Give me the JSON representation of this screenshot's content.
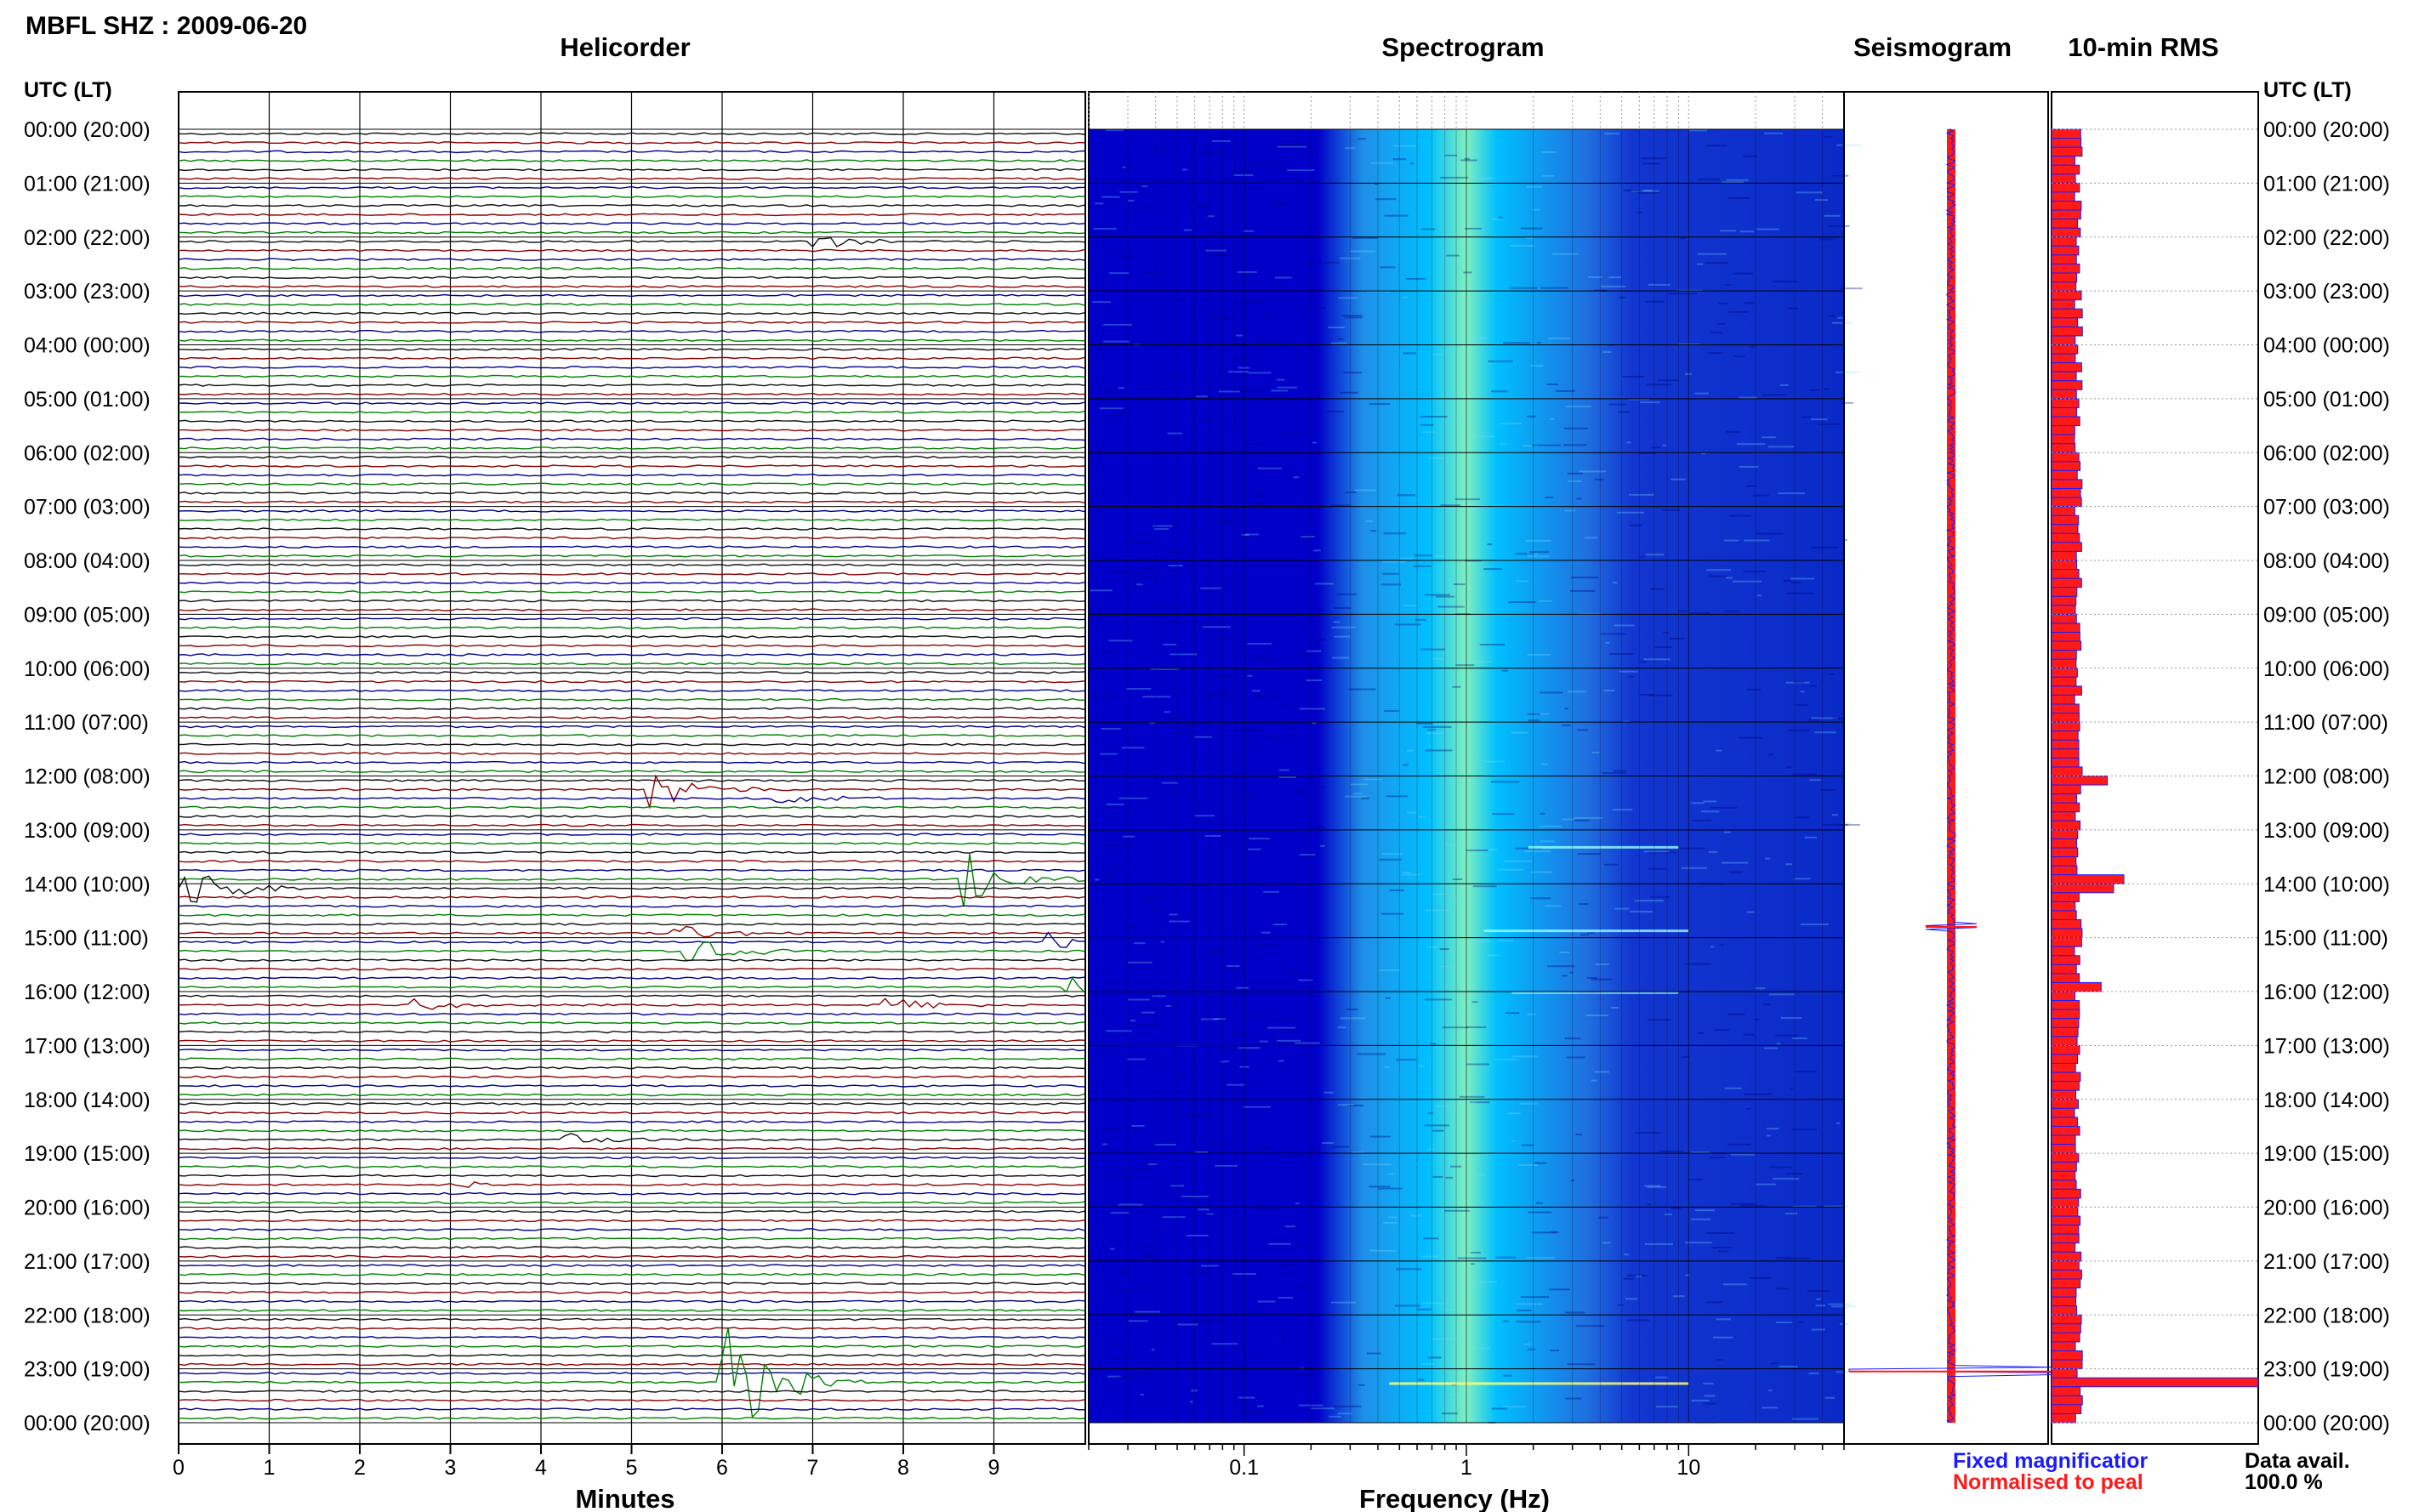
{
  "title": "MBFL SHZ : 2009-06-20",
  "panels": {
    "helicorder": "Helicorder",
    "spectrogram": "Spectrogram",
    "seismogram": "Seismogram",
    "rms": "10-min RMS"
  },
  "time_axis_label": "UTC (LT)",
  "legend": {
    "fixed": "Fixed magnificatior",
    "normalised": "Normalised to peal",
    "fixed_color": "#1a1aff",
    "normalised_color": "#ff1a1a"
  },
  "data_avail": {
    "label": "Data avail.",
    "value": "100.0 %"
  },
  "colors": {
    "trace_black": "#111111",
    "trace_red": "#8b0000",
    "trace_blue": "#00008b",
    "trace_green": "#008000",
    "spec_low": "#0000c8",
    "spec_mid": "#00c0ff",
    "spec_high": "#ffff00",
    "rms_fill": "#ff1a1a",
    "rms_line": "#1a1aff"
  },
  "chart_data": [
    {
      "type": "line",
      "name": "helicorder",
      "xlabel": "Minutes",
      "xlim": [
        0,
        10
      ],
      "x_ticks": [
        "0",
        "1",
        "2",
        "3",
        "4",
        "5",
        "6",
        "7",
        "8",
        "9"
      ],
      "y_ticks": [
        "00:00 (20:00)",
        "01:00 (21:00)",
        "02:00 (22:00)",
        "03:00 (23:00)",
        "04:00 (00:00)",
        "05:00 (01:00)",
        "06:00 (02:00)",
        "07:00 (03:00)",
        "08:00 (04:00)",
        "09:00 (05:00)",
        "10:00 (06:00)",
        "11:00 (07:00)",
        "12:00 (08:00)",
        "13:00 (09:00)",
        "14:00 (10:00)",
        "15:00 (11:00)",
        "16:00 (12:00)",
        "17:00 (13:00)",
        "18:00 (14:00)",
        "19:00 (15:00)",
        "20:00 (16:00)",
        "21:00 (17:00)",
        "22:00 (18:00)",
        "23:00 (19:00)",
        "00:00 (20:00)"
      ],
      "trace_count": 144,
      "trace_color_cycle": [
        "black",
        "red",
        "blue",
        "green"
      ],
      "events": [
        {
          "trace": 12,
          "minute": 7.0,
          "amp": 0.5
        },
        {
          "trace": 73,
          "minute": 5.2,
          "amp": 1.2
        },
        {
          "trace": 74,
          "minute": 6.6,
          "amp": 0.4
        },
        {
          "trace": 84,
          "minute": 0.0,
          "amp": 1.6
        },
        {
          "trace": 83,
          "minute": 8.7,
          "amp": 1.6
        },
        {
          "trace": 89,
          "minute": 5.5,
          "amp": 0.6
        },
        {
          "trace": 90,
          "minute": 9.6,
          "amp": 0.5
        },
        {
          "trace": 91,
          "minute": 5.6,
          "amp": 0.8
        },
        {
          "trace": 95,
          "minute": 9.8,
          "amp": 0.6
        },
        {
          "trace": 97,
          "minute": 2.6,
          "amp": 0.4
        },
        {
          "trace": 97,
          "minute": 7.8,
          "amp": 0.4
        },
        {
          "trace": 112,
          "minute": 4.3,
          "amp": 0.4
        },
        {
          "trace": 117,
          "minute": 3.0,
          "amp": 0.4
        },
        {
          "trace": 139,
          "minute": 6.0,
          "amp": 4.0
        }
      ]
    },
    {
      "type": "heatmap",
      "name": "spectrogram",
      "xlabel": "Frequency (Hz)",
      "x_scale": "log",
      "xlim": [
        0.02,
        50
      ],
      "x_tick_labels": [
        "0.1",
        "1",
        "10"
      ],
      "x_tick_values": [
        0.1,
        1,
        10
      ],
      "peak_frequency_hz": 1,
      "energy_band_hz": [
        0.25,
        3.5
      ]
    },
    {
      "type": "line",
      "name": "seismogram",
      "spikes": [
        {
          "hour": 14.8,
          "amp": 0.25
        },
        {
          "hour": 23.05,
          "amp": 1.0
        }
      ]
    },
    {
      "type": "bar",
      "name": "10-min RMS",
      "bins": 144,
      "baseline": 0.13,
      "peaks": [
        {
          "bin": 72,
          "value": 0.27
        },
        {
          "bin": 83,
          "value": 0.35
        },
        {
          "bin": 84,
          "value": 0.3
        },
        {
          "bin": 95,
          "value": 0.24
        },
        {
          "bin": 139,
          "value": 1.0
        }
      ]
    }
  ]
}
